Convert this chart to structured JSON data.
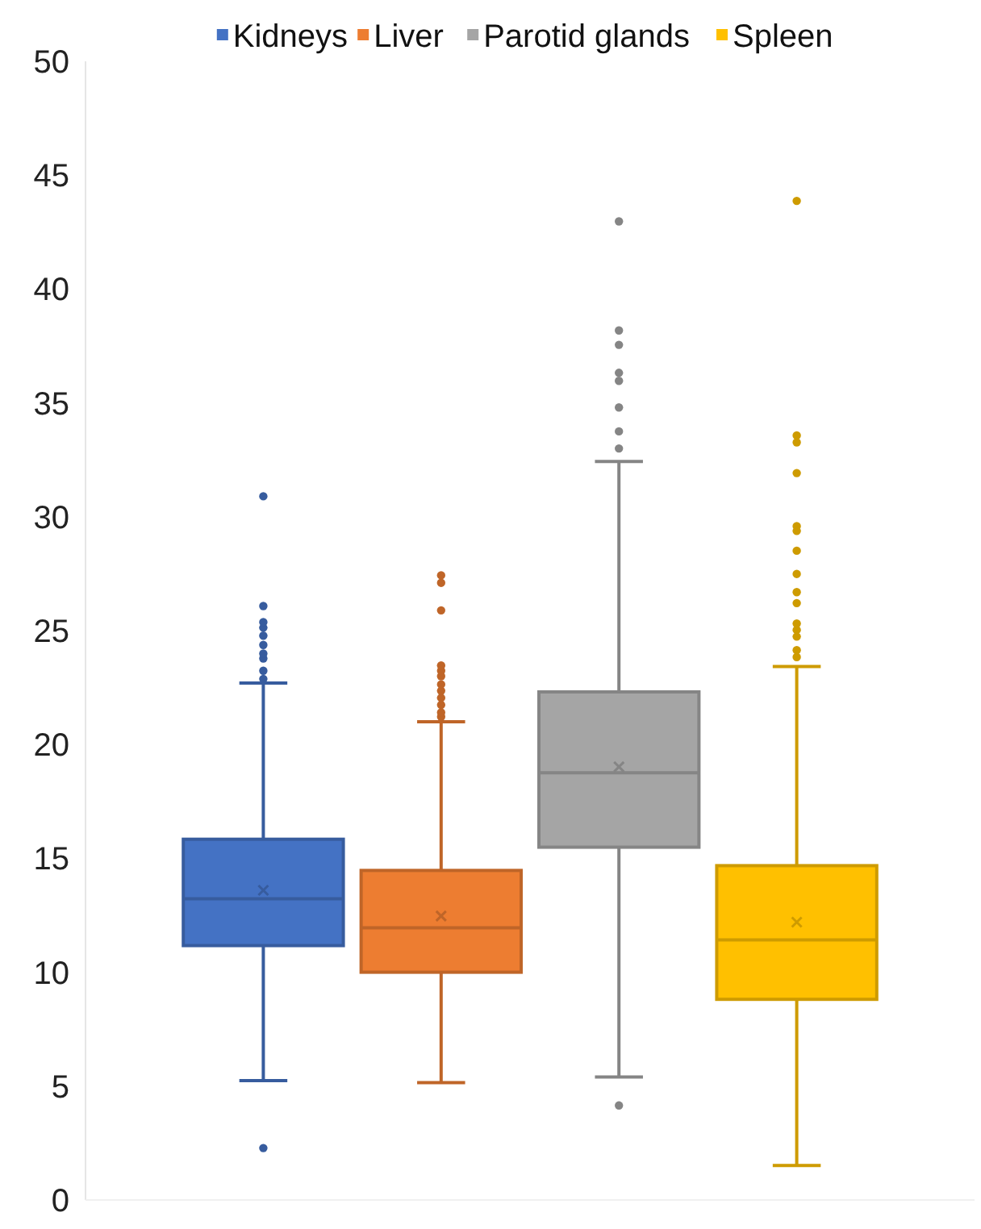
{
  "chart_data": {
    "type": "box",
    "categories": [
      null
    ],
    "ylim": [
      0,
      50
    ],
    "yticks": [
      0,
      5,
      10,
      15,
      20,
      25,
      30,
      35,
      40,
      45,
      50
    ],
    "grid": false,
    "legend": "top",
    "series": [
      {
        "name": "Kidneys",
        "color": "#4472c4",
        "boxes": [
          {
            "low": 5.24,
            "q1": 11.17,
            "median": 13.23,
            "q3": 15.84,
            "high": 22.7,
            "mean": 13.6,
            "outliers": [
              2.28,
              22.88,
              23.24,
              23.78,
              23.99,
              24.37,
              24.78,
              25.13,
              25.37,
              26.08,
              30.9
            ]
          }
        ]
      },
      {
        "name": "Liver",
        "color": "#ed7d31",
        "boxes": [
          {
            "low": 5.15,
            "q1": 10.0,
            "median": 11.95,
            "q3": 14.47,
            "high": 21.0,
            "mean": 12.47,
            "outliers": [
              21.22,
              21.41,
              21.74,
              22.05,
              22.36,
              22.64,
              23.0,
              23.24,
              23.47,
              25.89,
              27.1,
              27.43
            ]
          }
        ]
      },
      {
        "name": "Parotid glands",
        "color": "#a5a5a5",
        "boxes": [
          {
            "low": 5.4,
            "q1": 15.49,
            "median": 18.76,
            "q3": 22.31,
            "high": 32.43,
            "mean": 19.02,
            "outliers": [
              4.15,
              33.0,
              33.75,
              34.8,
              35.97,
              36.32,
              37.55,
              38.18,
              42.97
            ]
          }
        ]
      },
      {
        "name": "Spleen",
        "color": "#ffc000",
        "boxes": [
          {
            "low": 1.51,
            "q1": 8.81,
            "median": 11.42,
            "q3": 14.68,
            "high": 23.42,
            "mean": 12.2,
            "outliers": [
              23.84,
              24.14,
              24.74,
              25.03,
              25.31,
              26.21,
              26.69,
              27.49,
              28.51,
              29.38,
              29.59,
              31.92,
              33.27,
              33.57,
              43.87
            ]
          }
        ]
      }
    ]
  }
}
